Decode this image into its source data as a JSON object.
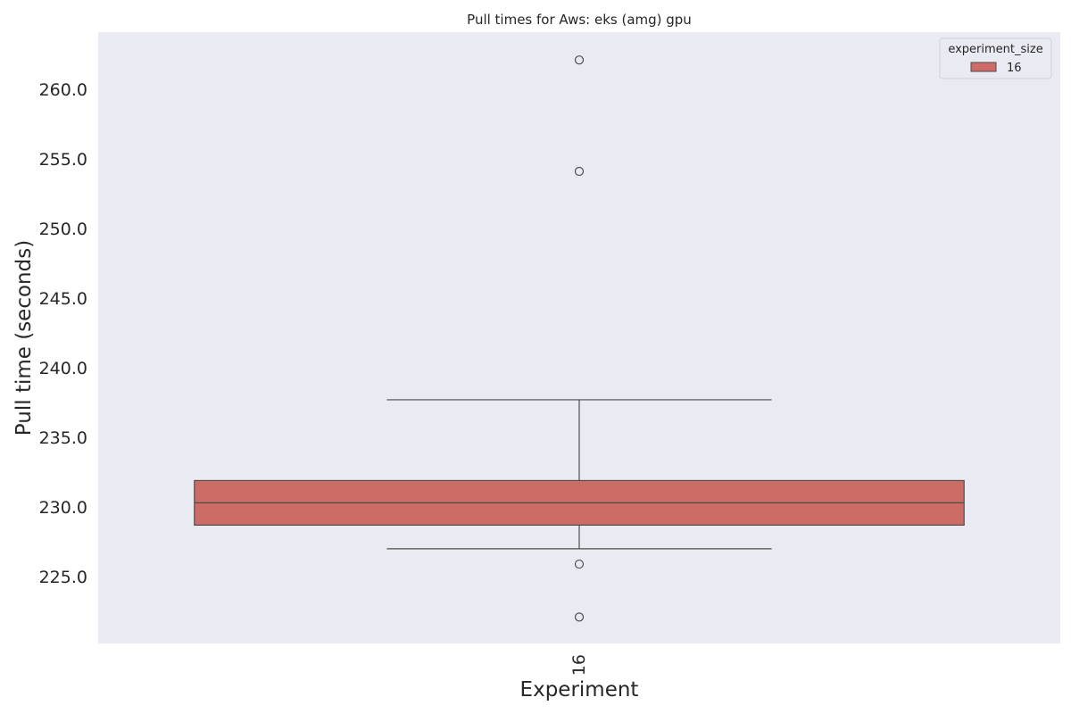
{
  "chart_data": {
    "type": "box",
    "title": "Pull times for Aws: eks (amg) gpu",
    "xlabel": "Experiment",
    "ylabel": "Pull time (seconds)",
    "categories": [
      "16"
    ],
    "ylim": [
      220.2,
      264.1
    ],
    "yticks": [
      225.0,
      230.0,
      235.0,
      240.0,
      245.0,
      250.0,
      255.0,
      260.0
    ],
    "ytick_labels": [
      "225.0",
      "230.0",
      "235.0",
      "240.0",
      "245.0",
      "250.0",
      "255.0",
      "260.0"
    ],
    "boxes": [
      {
        "category": "16",
        "whisker_low": 227.0,
        "q1": 228.7,
        "median": 230.3,
        "q3": 231.9,
        "whisker_high": 237.7,
        "outliers": [
          262.1,
          254.1,
          225.9,
          222.1
        ]
      }
    ],
    "legend": {
      "title": "experiment_size",
      "entries": [
        "16"
      ],
      "position": "top-right"
    },
    "grid": false,
    "colors": {
      "plot_background": "#eaeaf2",
      "box_fill": "#cd6b66",
      "line": "#4d4d4d",
      "text": "#262626"
    }
  }
}
